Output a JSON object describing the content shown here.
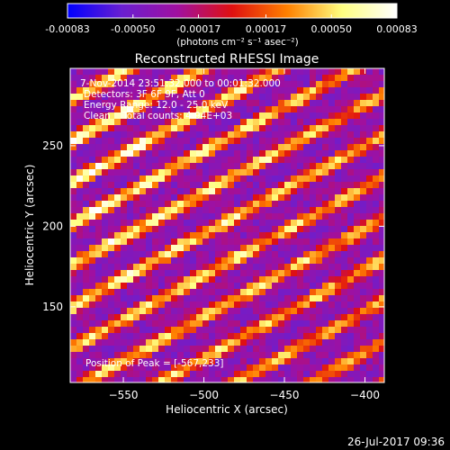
{
  "colorbar": {
    "tick_labels": [
      "-0.00083",
      "-0.00050",
      "-0.00017",
      "0.00017",
      "0.00050",
      "0.00083"
    ],
    "tick_values": [
      -0.00083,
      -0.0005,
      -0.00017,
      0.00017,
      0.0005,
      0.00083
    ],
    "range": [
      -0.00083,
      0.00083
    ],
    "colors": [
      "#0000ff",
      "#6a1fd0",
      "#a010a0",
      "#e01010",
      "#ff8000",
      "#ffff80",
      "#ffffff"
    ],
    "units_label": "(photons cm⁻² s⁻¹ asec⁻²)"
  },
  "chart_data": {
    "type": "heatmap",
    "title": "Reconstructed RHESSI Image",
    "xlabel": "Heliocentric X (arcsec)",
    "ylabel": "Heliocentric Y (arcsec)",
    "xlim": [
      -583,
      -388
    ],
    "ylim": [
      103,
      298
    ],
    "x_ticks": [
      -550,
      -500,
      -450,
      -400
    ],
    "x_tick_labels": [
      "−550",
      "−500",
      "−450",
      "−400"
    ],
    "y_ticks": [
      150,
      200,
      250
    ],
    "y_tick_labels": [
      "150",
      "200",
      "250"
    ],
    "grid": false,
    "peak": [
      -567,
      233
    ],
    "annotations": {
      "time": "7-Nov-2014 23:51:32.000 to 00:01:32.000",
      "detectors": "Detectors: 3F 6F 9F, Att 0",
      "energy": "Energy Range: 12.0 - 25.0 keV",
      "clean": "Clean    Total counts: 4.94E+03",
      "peak_label": "Position of Peak = [-567,233]"
    }
  },
  "footer": {
    "timestamp": "26-Jul-2017 09:36"
  }
}
